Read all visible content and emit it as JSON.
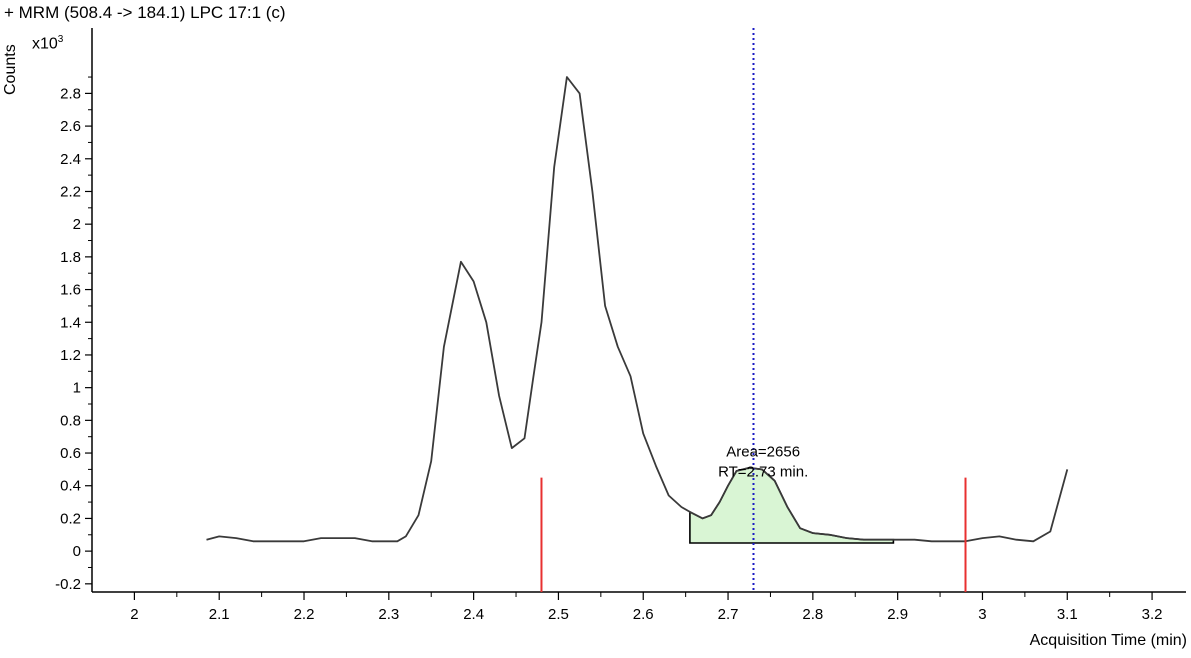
{
  "chart_data": {
    "type": "line",
    "title": "+ MRM (508.4 -> 184.1) LPC 17:1 (c)",
    "ylabel": "Counts",
    "yscale_label": "x10",
    "yscale_exp": "3",
    "xlabel": "Acquisition Time (min)",
    "xlim": [
      1.95,
      3.24
    ],
    "ylim": [
      -0.25,
      3.2
    ],
    "xticks": [
      2,
      2.1,
      2.2,
      2.3,
      2.4,
      2.5,
      2.6,
      2.7,
      2.8,
      2.9,
      3,
      3.1,
      3.2
    ],
    "xtick_labels": [
      "2",
      "2.1",
      "2.2",
      "2.3",
      "2.4",
      "2.5",
      "2.6",
      "2.7",
      "2.8",
      "2.9",
      "3",
      "3.1",
      "3.2"
    ],
    "yticks": [
      -0.2,
      0,
      0.2,
      0.4,
      0.6,
      0.8,
      1,
      1.2,
      1.4,
      1.6,
      1.8,
      2,
      2.2,
      2.4,
      2.6,
      2.8
    ],
    "ytick_labels": [
      "-0.2",
      "0",
      "0.2",
      "0.4",
      "0.6",
      "0.8",
      "1",
      "1.2",
      "1.4",
      "1.6",
      "1.8",
      "2",
      "2.2",
      "2.4",
      "2.6",
      "2.8"
    ],
    "series": [
      {
        "color": "#3a3a3a",
        "x": [
          2.085,
          2.1,
          2.12,
          2.14,
          2.16,
          2.18,
          2.2,
          2.22,
          2.24,
          2.26,
          2.28,
          2.3,
          2.31,
          2.32,
          2.335,
          2.35,
          2.365,
          2.385,
          2.4,
          2.415,
          2.43,
          2.445,
          2.46,
          2.47,
          2.48,
          2.495,
          2.51,
          2.525,
          2.54,
          2.555,
          2.57,
          2.585,
          2.6,
          2.615,
          2.63,
          2.645,
          2.655,
          2.67,
          2.68,
          2.69,
          2.7,
          2.71,
          2.725,
          2.74,
          2.755,
          2.77,
          2.785,
          2.8,
          2.82,
          2.84,
          2.86,
          2.88,
          2.9,
          2.92,
          2.94,
          2.96,
          2.98,
          3.0,
          3.02,
          3.04,
          3.06,
          3.08,
          3.1
        ],
        "y": [
          0.07,
          0.09,
          0.08,
          0.06,
          0.06,
          0.06,
          0.06,
          0.08,
          0.08,
          0.08,
          0.06,
          0.06,
          0.06,
          0.09,
          0.22,
          0.55,
          1.25,
          1.77,
          1.65,
          1.4,
          0.95,
          0.63,
          0.69,
          1.05,
          1.4,
          2.35,
          2.9,
          2.8,
          2.2,
          1.5,
          1.25,
          1.07,
          0.72,
          0.52,
          0.34,
          0.27,
          0.24,
          0.2,
          0.22,
          0.3,
          0.4,
          0.49,
          0.51,
          0.5,
          0.43,
          0.27,
          0.14,
          0.11,
          0.1,
          0.08,
          0.07,
          0.07,
          0.07,
          0.07,
          0.06,
          0.06,
          0.06,
          0.08,
          0.09,
          0.07,
          0.06,
          0.12,
          0.5
        ]
      }
    ],
    "integrated_peak": {
      "start": 2.655,
      "end": 2.895,
      "baseline": 0.05,
      "fill": "#d9f5d4",
      "area_text": "Area=2656",
      "rt_text": "RT=2.73 min."
    },
    "rt_marker": {
      "x": 2.73,
      "color": "#1c1cc4"
    },
    "integration_limits": {
      "x": [
        2.48,
        2.98
      ],
      "top": 0.45,
      "color": "#e83030"
    }
  }
}
